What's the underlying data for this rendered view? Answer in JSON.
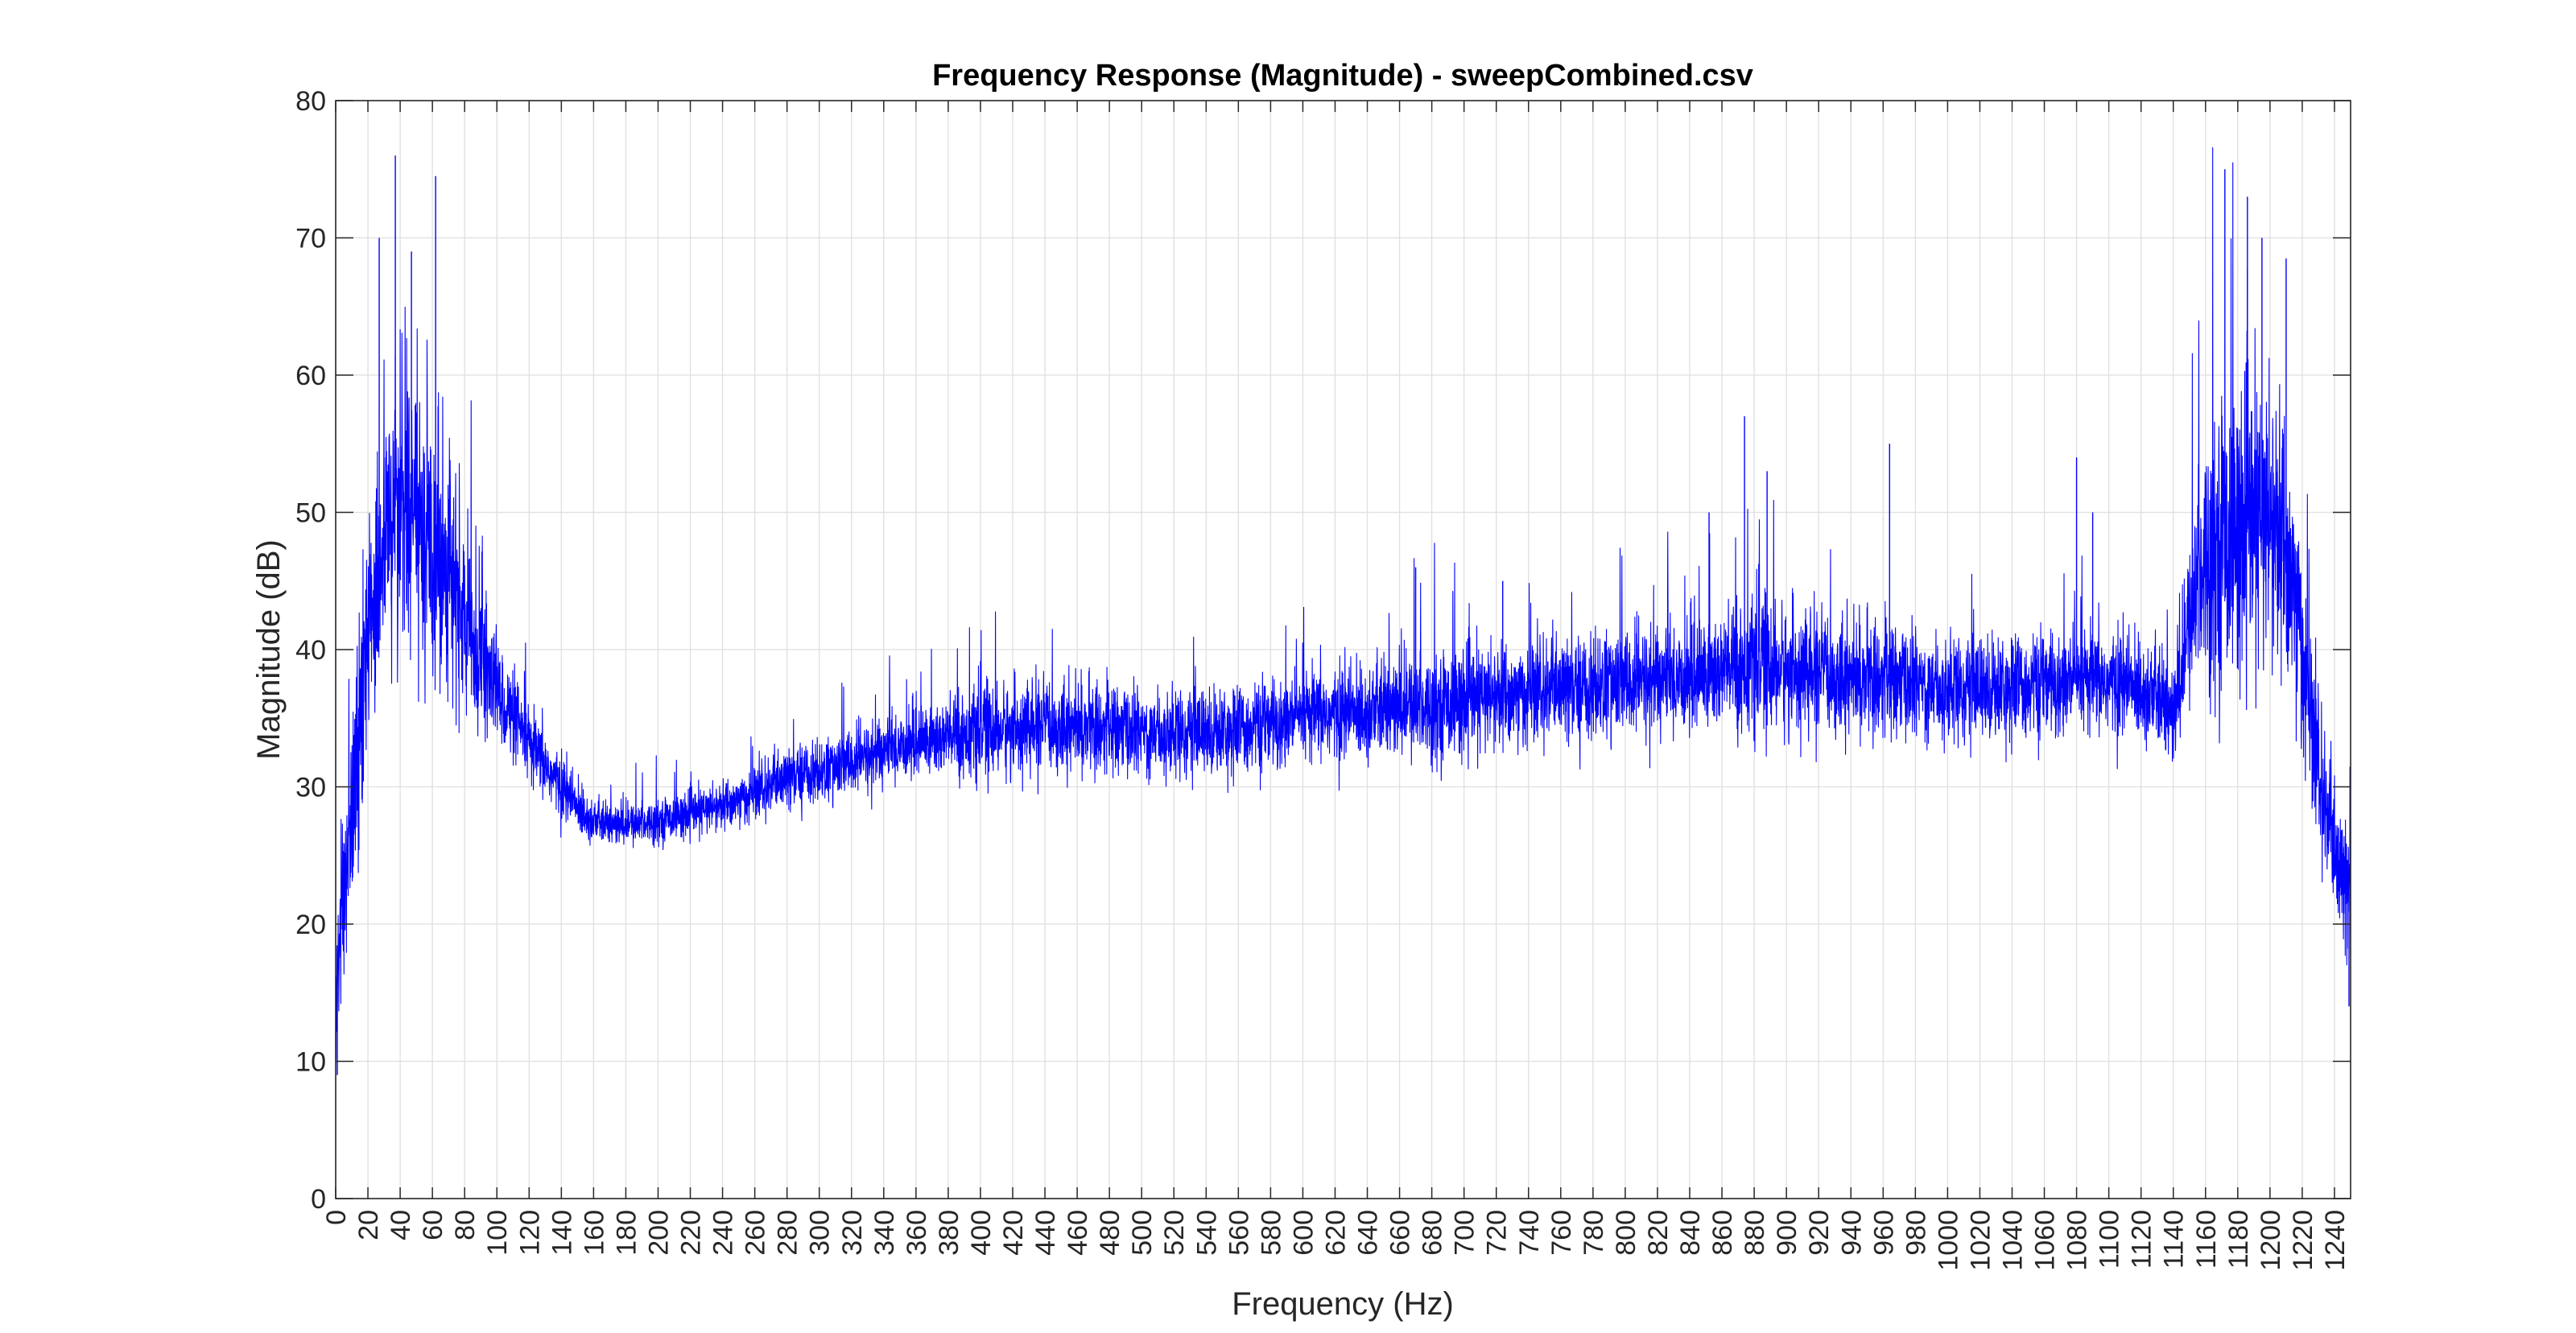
{
  "chart_data": {
    "type": "line",
    "title": "Frequency Response (Magnitude) - sweepCombined.csv",
    "xlabel": "Frequency (Hz)",
    "ylabel": "Magnitude (dB)",
    "xlim": [
      0,
      1250
    ],
    "ylim": [
      0,
      80
    ],
    "x_ticks": [
      0,
      20,
      40,
      60,
      80,
      100,
      120,
      140,
      160,
      180,
      200,
      220,
      240,
      260,
      280,
      300,
      320,
      340,
      360,
      380,
      400,
      420,
      440,
      460,
      480,
      500,
      520,
      540,
      560,
      580,
      600,
      620,
      640,
      660,
      680,
      700,
      720,
      740,
      760,
      780,
      800,
      820,
      840,
      860,
      880,
      900,
      920,
      940,
      960,
      980,
      1000,
      1020,
      1040,
      1060,
      1080,
      1100,
      1120,
      1140,
      1160,
      1180,
      1200,
      1220,
      1240
    ],
    "y_ticks": [
      0,
      10,
      20,
      30,
      40,
      50,
      60,
      70,
      80
    ],
    "grid": true,
    "line_color": "#0000ff",
    "envelope": {
      "frequency_hz": [
        0,
        2,
        5,
        10,
        15,
        20,
        25,
        30,
        35,
        40,
        45,
        50,
        55,
        60,
        65,
        70,
        75,
        80,
        85,
        90,
        95,
        100,
        110,
        120,
        130,
        140,
        150,
        160,
        170,
        180,
        190,
        200,
        210,
        220,
        230,
        240,
        250,
        260,
        270,
        280,
        290,
        300,
        310,
        320,
        330,
        340,
        350,
        360,
        370,
        380,
        390,
        400,
        420,
        440,
        460,
        480,
        500,
        520,
        540,
        560,
        580,
        600,
        620,
        640,
        660,
        680,
        700,
        720,
        740,
        760,
        780,
        800,
        820,
        840,
        860,
        880,
        900,
        920,
        940,
        960,
        980,
        1000,
        1020,
        1040,
        1060,
        1080,
        1100,
        1120,
        1130,
        1140,
        1145,
        1150,
        1155,
        1160,
        1170,
        1180,
        1190,
        1200,
        1205,
        1210,
        1215,
        1220,
        1225,
        1230,
        1235,
        1240,
        1245,
        1250
      ],
      "center_db": [
        12,
        18,
        23,
        28,
        34,
        40,
        45,
        48,
        50,
        51,
        51,
        50,
        49,
        48,
        47,
        46,
        44,
        42,
        40.5,
        39,
        38,
        37,
        35,
        33,
        31.5,
        30,
        28.5,
        27.5,
        27.2,
        27.2,
        27.4,
        27.6,
        27.8,
        28,
        28.3,
        28.6,
        29,
        29.5,
        30,
        30.5,
        31,
        31,
        31.3,
        31.8,
        32.2,
        32.6,
        33,
        33.3,
        33.5,
        33.6,
        33.8,
        34,
        34.2,
        34.4,
        34.4,
        34.2,
        34,
        34,
        34,
        34.2,
        34.5,
        35,
        35.3,
        35.5,
        35.7,
        36,
        36.2,
        36.5,
        36.7,
        37,
        37.2,
        37.5,
        37.8,
        38,
        38.5,
        38.8,
        38.5,
        38.2,
        38,
        37.8,
        37.5,
        37.2,
        37.2,
        37.3,
        37.4,
        37.5,
        37.6,
        37.2,
        36.5,
        35,
        38,
        42,
        45,
        47,
        48,
        48.5,
        49,
        49,
        48.5,
        47,
        44,
        40,
        35,
        31,
        28,
        25,
        23,
        22
      ],
      "spread_db": [
        3,
        5,
        6,
        6,
        7,
        8,
        8,
        8,
        8,
        8,
        8,
        8,
        8,
        7.5,
        7,
        6.5,
        6,
        5,
        4.5,
        4,
        3.5,
        3,
        2.5,
        2.2,
        2,
        1.8,
        1.6,
        1.3,
        1.2,
        1.2,
        1.2,
        1.2,
        1.2,
        1.3,
        1.3,
        1.4,
        1.5,
        1.6,
        1.7,
        1.8,
        1.8,
        1.8,
        1.9,
        2,
        2,
        2.1,
        2.2,
        2.2,
        2.3,
        2.4,
        2.5,
        2.6,
        2.6,
        2.6,
        2.6,
        2.5,
        2.5,
        2.5,
        2.5,
        2.5,
        2.6,
        2.6,
        2.7,
        2.8,
        2.9,
        3,
        3,
        3,
        3,
        3,
        3.1,
        3.2,
        3.3,
        3.5,
        3.6,
        3.8,
        3.6,
        3.4,
        3.3,
        3.2,
        3.1,
        3,
        3,
        3,
        3,
        3,
        3,
        3,
        3,
        3,
        3.5,
        4.5,
        6,
        7,
        8,
        8,
        8,
        8,
        8,
        7.5,
        7,
        6,
        5,
        4.5,
        4,
        4,
        4,
        4
      ]
    },
    "peaks": [
      {
        "x": 37,
        "y": 76
      },
      {
        "x": 62,
        "y": 74.5
      },
      {
        "x": 27,
        "y": 70
      },
      {
        "x": 47,
        "y": 69
      },
      {
        "x": 670,
        "y": 46
      },
      {
        "x": 724,
        "y": 45
      },
      {
        "x": 852,
        "y": 50
      },
      {
        "x": 874,
        "y": 57
      },
      {
        "x": 888,
        "y": 53
      },
      {
        "x": 964,
        "y": 55
      },
      {
        "x": 1080,
        "y": 54
      },
      {
        "x": 1090,
        "y": 50
      },
      {
        "x": 1172,
        "y": 75
      },
      {
        "x": 1186,
        "y": 73
      },
      {
        "x": 1195,
        "y": 70
      },
      {
        "x": 1210,
        "y": 68.5
      }
    ],
    "dips": [
      {
        "x": 1,
        "y": 9
      },
      {
        "x": 1249,
        "y": 14
      }
    ]
  }
}
